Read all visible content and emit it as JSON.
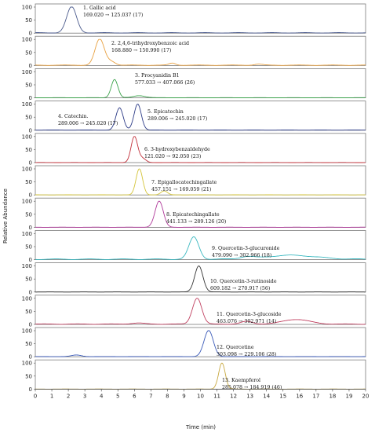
{
  "chart_data": {
    "type": "line",
    "xlabel": "Time (min)",
    "ylabel": "Relative Abundance",
    "xlim": [
      0,
      20
    ],
    "ylim": [
      0,
      100
    ],
    "x_ticks": [
      "0",
      "1",
      "2",
      "3",
      "4",
      "5",
      "6",
      "7",
      "8",
      "9",
      "10",
      "11",
      "12",
      "13",
      "14",
      "15",
      "16",
      "17",
      "18",
      "19",
      "20"
    ],
    "y_ticks": [
      "0",
      "50",
      "100"
    ],
    "panels": [
      {
        "id": 1,
        "label": "1.   Gallic acid",
        "transition": "169.020 → 125.037 (17)",
        "color": "#4a5a8c",
        "peaks": [
          [
            2.2,
            100,
            0.3
          ]
        ],
        "baseline": 2
      },
      {
        "id": 2,
        "label": "2. 2,4,6-trihydroxybenzoic acid",
        "transition": "168.880 → 150.990 (17)",
        "color": "#e8a040",
        "peaks": [
          [
            3.9,
            100,
            0.28
          ],
          [
            4.6,
            14,
            0.25
          ],
          [
            8.3,
            8,
            0.2
          ],
          [
            13.5,
            4,
            0.25
          ]
        ],
        "baseline": 2
      },
      {
        "id": 3,
        "label": "3. Procyanidin B1",
        "transition": "577.033 → 407.066 (26)",
        "color": "#3aa24a",
        "peaks": [
          [
            4.8,
            70,
            0.2
          ],
          [
            6.3,
            8,
            0.35
          ]
        ],
        "baseline": 1
      },
      {
        "id": 4,
        "label": "4. Catechin.",
        "transition": "289.006 → 245.020 (17)",
        "color": "#2b3a86",
        "peaks": [
          [
            5.1,
            85,
            0.22
          ],
          [
            6.2,
            100,
            0.22
          ]
        ],
        "baseline": 1
      },
      {
        "id": 5,
        "label": "5. Epicatechin",
        "transition": "289.006 → 245.020 (17)",
        "color": "#2b3a86",
        "peaks": [],
        "baseline": 0
      },
      {
        "id": 6,
        "label": "6. 3-hydroxybenzaldehyde",
        "transition": "121.020 → 92.050 (23)",
        "color": "#c2303a",
        "peaks": [
          [
            6.0,
            100,
            0.2
          ],
          [
            6.5,
            15,
            0.2
          ]
        ],
        "baseline": 0.5
      },
      {
        "id": 7,
        "label": "7. Epigallocatechingallate",
        "transition": "457.151 → 169.059 (21)",
        "color": "#d4c43a",
        "peaks": [
          [
            6.3,
            100,
            0.2
          ],
          [
            7.8,
            15,
            0.2
          ]
        ],
        "baseline": 0.5
      },
      {
        "id": 8,
        "label": "8. Epicatechingallate",
        "transition": "441.133 → 289.126 (20)",
        "color": "#b03a9a",
        "peaks": [
          [
            7.5,
            100,
            0.25
          ]
        ],
        "baseline": 0.5
      },
      {
        "id": 9,
        "label": "9. Quercetin-3-glucuronide",
        "transition": "479.090 → 302.966 (18)",
        "color": "#3ab8c0",
        "peaks": [
          [
            9.6,
            85,
            0.3
          ],
          [
            12.8,
            8,
            0.4
          ],
          [
            15.5,
            15,
            1.5
          ]
        ],
        "baseline": 3
      },
      {
        "id": 10,
        "label": "10. Quercetin-3-rutinoside",
        "transition": "609.182 → 270.917 (56)",
        "color": "#333333",
        "peaks": [
          [
            9.9,
            100,
            0.25
          ]
        ],
        "baseline": 0.5
      },
      {
        "id": 11,
        "label": "11. Quercetin-3-glucoside",
        "transition": "463.076 → 302.971 (14)",
        "color": "#c04060",
        "peaks": [
          [
            9.8,
            100,
            0.28
          ],
          [
            12.8,
            10,
            0.35
          ],
          [
            15.8,
            18,
            0.8
          ],
          [
            6.2,
            4,
            0.4
          ]
        ],
        "baseline": 2
      },
      {
        "id": 12,
        "label": "12. Quercetine",
        "transition": "303.098 → 229.106 (28)",
        "color": "#3a5ab8",
        "peaks": [
          [
            10.5,
            100,
            0.28
          ],
          [
            2.5,
            6,
            0.3
          ]
        ],
        "baseline": 1
      },
      {
        "id": 13,
        "label": "13. Kaempferol",
        "transition": "285.078 → 184.919 (46)",
        "color": "#c8a840",
        "peaks": [
          [
            11.3,
            100,
            0.2
          ]
        ],
        "baseline": 0.5
      }
    ]
  }
}
